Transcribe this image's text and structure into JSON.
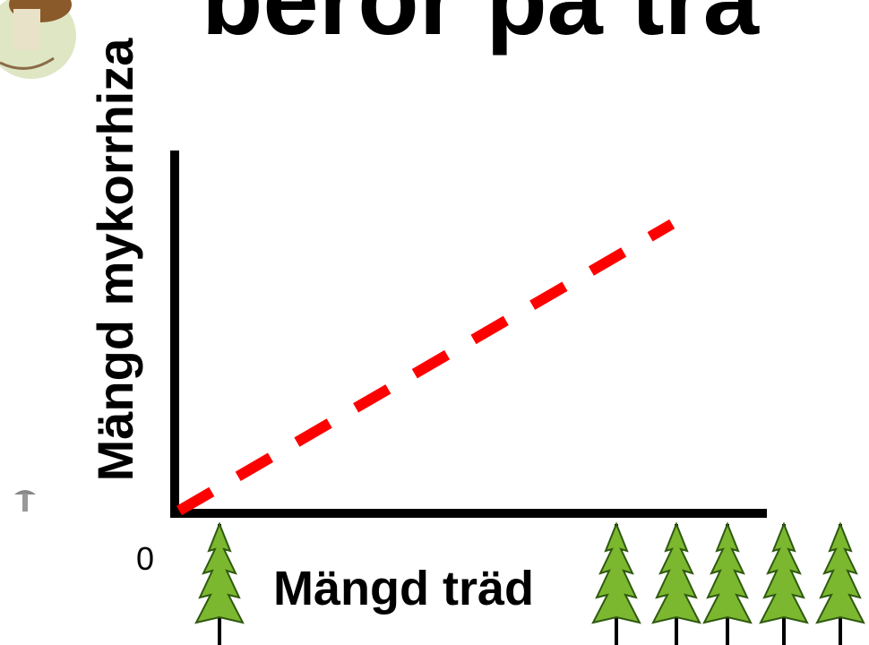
{
  "chart_data": {
    "type": "line",
    "title": "beror på trä",
    "y_label": "Mängd mykorrhiza",
    "x_label": "Mängd träd",
    "x": [
      0,
      0.84
    ],
    "series": [
      {
        "name": null,
        "color": "#ff0000",
        "values": [
          0,
          0.8
        ]
      }
    ],
    "xlim": [
      0,
      1
    ],
    "ylim": [
      0,
      1
    ],
    "xticks": [
      0
    ],
    "dashed": true
  }
}
